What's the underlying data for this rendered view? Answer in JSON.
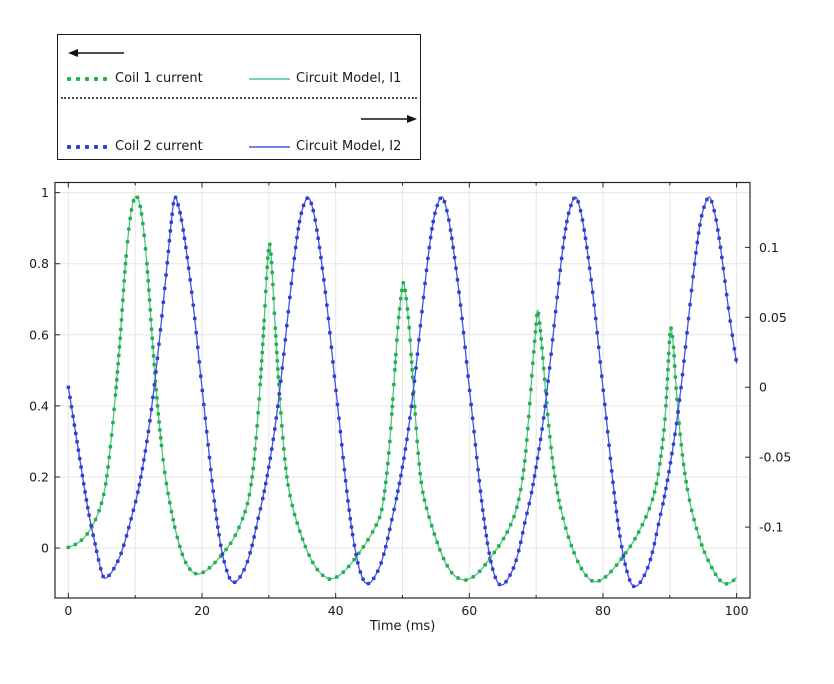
{
  "legend": {
    "left_arrow": "left-arrow",
    "right_arrow": "right-arrow"
  },
  "chart_data": {
    "type": "line",
    "title": "",
    "xlabel": "Time (ms)",
    "grid": true,
    "legend_position": "top-left",
    "axes": {
      "x": {
        "min": -2,
        "max": 102,
        "ticks": [
          0,
          20,
          40,
          60,
          80,
          100
        ],
        "minor_ticks": [
          10,
          30,
          50,
          70,
          90
        ],
        "tick_labels": [
          "0",
          "20",
          "40",
          "60",
          "80",
          "100"
        ]
      },
      "y_left": {
        "min": -0.1405,
        "max": 1.0285,
        "ticks": [
          1,
          0.8,
          0.6,
          0.4,
          0.2,
          0
        ],
        "tick_labels": [
          "1",
          "0.8",
          "0.6",
          "0.4",
          "0.2",
          "0"
        ]
      },
      "y_right": {
        "min": -0.1507,
        "max": 0.1464,
        "ticks": [
          0.1,
          0.05,
          0,
          -0.05,
          -0.1
        ],
        "tick_labels": [
          "0.1",
          "0.05",
          "0",
          "-0.05",
          "-0.1"
        ]
      }
    },
    "series": [
      {
        "coil_label": "Coil 1 current",
        "circuit_label": "Circuit Model, I1",
        "axis": "left",
        "marker_color": "#22b14c",
        "line_color": "#50c38c",
        "points": [
          [
            0,
            0.002
          ],
          [
            1.2,
            0.012
          ],
          [
            2.4,
            0.03
          ],
          [
            3.5,
            0.06
          ],
          [
            4.6,
            0.105
          ],
          [
            5.5,
            0.17
          ],
          [
            6.2,
            0.27
          ],
          [
            6.95,
            0.41
          ],
          [
            7.75,
            0.59
          ],
          [
            8.55,
            0.8
          ],
          [
            9.35,
            0.94
          ],
          [
            10.15,
            0.99
          ],
          [
            10.95,
            0.94
          ],
          [
            11.75,
            0.8
          ],
          [
            12.55,
            0.59
          ],
          [
            13.35,
            0.4
          ],
          [
            14.3,
            0.23
          ],
          [
            15.3,
            0.115
          ],
          [
            16.3,
            0.03
          ],
          [
            17.3,
            -0.03
          ],
          [
            18.3,
            -0.062
          ],
          [
            19.3,
            -0.073
          ],
          [
            20.3,
            -0.067
          ],
          [
            21.4,
            -0.051
          ],
          [
            22.5,
            -0.029
          ],
          [
            23.6,
            -0.004
          ],
          [
            24.7,
            0.026
          ],
          [
            25.8,
            0.07
          ],
          [
            26.8,
            0.125
          ],
          [
            27.5,
            0.2
          ],
          [
            28.1,
            0.31
          ],
          [
            28.7,
            0.46
          ],
          [
            29.3,
            0.64
          ],
          [
            29.75,
            0.79
          ],
          [
            30.1,
            0.856
          ],
          [
            30.45,
            0.79
          ],
          [
            30.9,
            0.64
          ],
          [
            31.5,
            0.46
          ],
          [
            32.1,
            0.31
          ],
          [
            32.7,
            0.2
          ],
          [
            33.5,
            0.12
          ],
          [
            34.5,
            0.055
          ],
          [
            35.6,
            -0.002
          ],
          [
            36.7,
            -0.045
          ],
          [
            37.8,
            -0.072
          ],
          [
            38.8,
            -0.085
          ],
          [
            39.3,
            -0.087
          ],
          [
            40.3,
            -0.08
          ],
          [
            41.4,
            -0.063
          ],
          [
            42.5,
            -0.039
          ],
          [
            43.6,
            -0.011
          ],
          [
            44.7,
            0.019
          ],
          [
            45.8,
            0.055
          ],
          [
            46.8,
            0.1
          ],
          [
            47.5,
            0.185
          ],
          [
            48.1,
            0.3
          ],
          [
            48.7,
            0.46
          ],
          [
            49.3,
            0.62
          ],
          [
            49.8,
            0.71
          ],
          [
            50.15,
            0.747
          ],
          [
            50.5,
            0.71
          ],
          [
            51,
            0.62
          ],
          [
            51.6,
            0.46
          ],
          [
            52.2,
            0.3
          ],
          [
            52.8,
            0.185
          ],
          [
            53.5,
            0.12
          ],
          [
            54.5,
            0.055
          ],
          [
            55.6,
            -0.005
          ],
          [
            56.7,
            -0.05
          ],
          [
            57.8,
            -0.078
          ],
          [
            59.2,
            -0.09
          ],
          [
            60.3,
            -0.084
          ],
          [
            61.4,
            -0.068
          ],
          [
            62.5,
            -0.044
          ],
          [
            63.6,
            -0.016
          ],
          [
            64.7,
            0.014
          ],
          [
            65.8,
            0.05
          ],
          [
            66.8,
            0.095
          ],
          [
            67.6,
            0.155
          ],
          [
            68.3,
            0.245
          ],
          [
            68.9,
            0.37
          ],
          [
            69.5,
            0.52
          ],
          [
            70,
            0.63
          ],
          [
            70.25,
            0.668
          ],
          [
            70.7,
            0.6
          ],
          [
            71.2,
            0.49
          ],
          [
            71.8,
            0.36
          ],
          [
            72.5,
            0.24
          ],
          [
            73.3,
            0.145
          ],
          [
            74.3,
            0.065
          ],
          [
            75.4,
            0
          ],
          [
            76.5,
            -0.048
          ],
          [
            77.6,
            -0.08
          ],
          [
            78.6,
            -0.094
          ],
          [
            79.7,
            -0.09
          ],
          [
            80.8,
            -0.074
          ],
          [
            81.9,
            -0.051
          ],
          [
            83,
            -0.024
          ],
          [
            84.1,
            0.005
          ],
          [
            85.2,
            0.04
          ],
          [
            86.3,
            0.082
          ],
          [
            87.3,
            0.13
          ],
          [
            88.1,
            0.19
          ],
          [
            88.75,
            0.27
          ],
          [
            89.35,
            0.38
          ],
          [
            89.9,
            0.565
          ],
          [
            90.15,
            0.62
          ],
          [
            90.55,
            0.565
          ],
          [
            90.95,
            0.45
          ],
          [
            91.55,
            0.32
          ],
          [
            92.25,
            0.21
          ],
          [
            93.05,
            0.125
          ],
          [
            94,
            0.055
          ],
          [
            95.05,
            -0.005
          ],
          [
            96.15,
            -0.05
          ],
          [
            97.25,
            -0.085
          ],
          [
            98.25,
            -0.1
          ],
          [
            99.2,
            -0.096
          ],
          [
            100,
            -0.082
          ]
        ]
      },
      {
        "coil_label": "Coil 2 current",
        "circuit_label": "Circuit Model, I2",
        "axis": "right",
        "marker_color": "#3240cf",
        "line_color": "#4254e8",
        "points": [
          [
            0,
            0
          ],
          [
            0.8,
            -0.024
          ],
          [
            1.6,
            -0.048
          ],
          [
            2.4,
            -0.072
          ],
          [
            3.2,
            -0.094
          ],
          [
            4,
            -0.112
          ],
          [
            4.6,
            -0.125
          ],
          [
            5.3,
            -0.136
          ],
          [
            6.2,
            -0.134
          ],
          [
            7,
            -0.128
          ],
          [
            7.8,
            -0.12
          ],
          [
            8.6,
            -0.108
          ],
          [
            9.5,
            -0.092
          ],
          [
            10.4,
            -0.075
          ],
          [
            11.3,
            -0.052
          ],
          [
            12.2,
            -0.024
          ],
          [
            13.1,
            0.011
          ],
          [
            14,
            0.051
          ],
          [
            14.8,
            0.089
          ],
          [
            15.4,
            0.118
          ],
          [
            15.9,
            0.1355
          ],
          [
            16.5,
            0.129
          ],
          [
            17.1,
            0.115
          ],
          [
            17.9,
            0.089
          ],
          [
            18.8,
            0.054
          ],
          [
            19.7,
            0.013
          ],
          [
            20.6,
            -0.027
          ],
          [
            21.4,
            -0.063
          ],
          [
            22.1,
            -0.091
          ],
          [
            22.8,
            -0.113
          ],
          [
            23.5,
            -0.128
          ],
          [
            24.3,
            -0.138
          ],
          [
            25.1,
            -0.139
          ],
          [
            25.9,
            -0.134
          ],
          [
            26.7,
            -0.126
          ],
          [
            27.5,
            -0.113
          ],
          [
            28.3,
            -0.096
          ],
          [
            29.2,
            -0.077
          ],
          [
            30.1,
            -0.054
          ],
          [
            31,
            -0.026
          ],
          [
            31.9,
            0.009
          ],
          [
            32.8,
            0.049
          ],
          [
            33.7,
            0.088
          ],
          [
            34.5,
            0.116
          ],
          [
            35.2,
            0.13
          ],
          [
            35.9,
            0.1355
          ],
          [
            36.5,
            0.129
          ],
          [
            37.1,
            0.115
          ],
          [
            37.9,
            0.089
          ],
          [
            38.8,
            0.054
          ],
          [
            39.7,
            0.013
          ],
          [
            40.6,
            -0.027
          ],
          [
            41.4,
            -0.063
          ],
          [
            42.1,
            -0.091
          ],
          [
            42.8,
            -0.113
          ],
          [
            43.5,
            -0.129
          ],
          [
            44.3,
            -0.139
          ],
          [
            45.1,
            -0.14
          ],
          [
            45.9,
            -0.135
          ],
          [
            46.7,
            -0.127
          ],
          [
            47.5,
            -0.114
          ],
          [
            48.3,
            -0.097
          ],
          [
            49.2,
            -0.077
          ],
          [
            50.1,
            -0.054
          ],
          [
            51,
            -0.026
          ],
          [
            51.9,
            0.009
          ],
          [
            52.8,
            0.049
          ],
          [
            53.7,
            0.088
          ],
          [
            54.5,
            0.116
          ],
          [
            55.2,
            0.13
          ],
          [
            55.9,
            0.136
          ],
          [
            56.5,
            0.129
          ],
          [
            57.1,
            0.115
          ],
          [
            57.9,
            0.089
          ],
          [
            58.8,
            0.054
          ],
          [
            59.7,
            0.013
          ],
          [
            60.6,
            -0.027
          ],
          [
            61.4,
            -0.063
          ],
          [
            62.1,
            -0.091
          ],
          [
            62.8,
            -0.114
          ],
          [
            63.5,
            -0.13
          ],
          [
            64.3,
            -0.14
          ],
          [
            65.1,
            -0.141
          ],
          [
            65.9,
            -0.136
          ],
          [
            66.7,
            -0.128
          ],
          [
            67.5,
            -0.115
          ],
          [
            68.3,
            -0.097
          ],
          [
            69.2,
            -0.078
          ],
          [
            70.1,
            -0.054
          ],
          [
            71,
            -0.026
          ],
          [
            71.9,
            0.009
          ],
          [
            72.8,
            0.049
          ],
          [
            73.7,
            0.088
          ],
          [
            74.5,
            0.116
          ],
          [
            75.2,
            0.13
          ],
          [
            75.9,
            0.136
          ],
          [
            76.5,
            0.129
          ],
          [
            77.1,
            0.115
          ],
          [
            77.9,
            0.089
          ],
          [
            78.8,
            0.054
          ],
          [
            79.7,
            0.013
          ],
          [
            80.6,
            -0.027
          ],
          [
            81.4,
            -0.064
          ],
          [
            82.1,
            -0.092
          ],
          [
            82.8,
            -0.114
          ],
          [
            83.5,
            -0.13
          ],
          [
            84.3,
            -0.141
          ],
          [
            85.1,
            -0.142
          ],
          [
            85.9,
            -0.137
          ],
          [
            86.7,
            -0.129
          ],
          [
            87.5,
            -0.116
          ],
          [
            88.3,
            -0.098
          ],
          [
            89.2,
            -0.078
          ],
          [
            90.1,
            -0.054
          ],
          [
            91,
            -0.026
          ],
          [
            91.9,
            0.009
          ],
          [
            92.8,
            0.049
          ],
          [
            93.7,
            0.088
          ],
          [
            94.5,
            0.116
          ],
          [
            95.2,
            0.13
          ],
          [
            95.9,
            0.136
          ],
          [
            96.5,
            0.129
          ],
          [
            97.1,
            0.115
          ],
          [
            97.9,
            0.089
          ],
          [
            98.9,
            0.052
          ],
          [
            100,
            0.017
          ]
        ]
      }
    ],
    "layout_colors": {
      "grid": "#e6e6e6",
      "axis": "#262626",
      "text": "#1a1a1a"
    }
  }
}
